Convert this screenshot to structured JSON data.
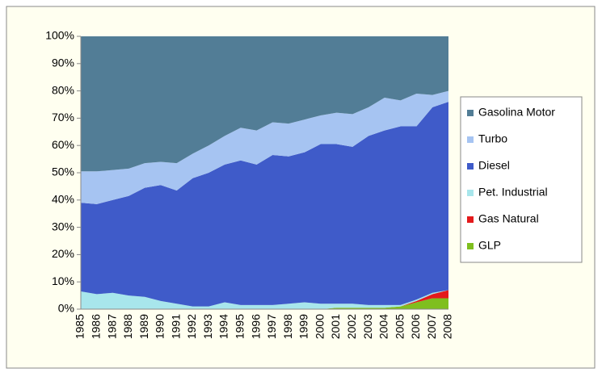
{
  "chart_data": {
    "type": "stacked_area",
    "categories": [
      "1985",
      "1986",
      "1987",
      "1988",
      "1989",
      "1990",
      "1991",
      "1992",
      "1993",
      "1994",
      "1995",
      "1996",
      "1997",
      "1998",
      "1999",
      "2000",
      "2001",
      "2002",
      "2003",
      "2004",
      "2005",
      "2006",
      "2007",
      "2008"
    ],
    "series": [
      {
        "name": "GLP",
        "color": "#7fbf1f",
        "values": [
          0,
          0,
          0,
          0,
          0,
          0,
          0,
          0,
          0,
          0,
          0,
          0,
          0,
          0,
          0,
          0,
          0.5,
          0.5,
          0.5,
          0.5,
          1,
          2.5,
          4,
          4
        ]
      },
      {
        "name": "Gas Natural",
        "color": "#e41a1c",
        "values": [
          0,
          0,
          0,
          0,
          0,
          0,
          0,
          0,
          0,
          0,
          0,
          0,
          0,
          0,
          0,
          0,
          0,
          0,
          0,
          0,
          0,
          0.5,
          1.5,
          3
        ]
      },
      {
        "name": "Pet. Industrial",
        "color": "#a8e6ec",
        "values": [
          6.5,
          5.5,
          6,
          5,
          4.5,
          3,
          2,
          1,
          1,
          2.5,
          1.5,
          1.5,
          1.5,
          2,
          2.5,
          2,
          1.5,
          1.5,
          1,
          1,
          0.5,
          0.5,
          0.5,
          0
        ]
      },
      {
        "name": "Diesel",
        "color": "#3f5bc9",
        "values": [
          32.5,
          33,
          34,
          36.5,
          40,
          42.5,
          41.5,
          47,
          49,
          50.5,
          53,
          51.5,
          55,
          54,
          55,
          58.5,
          58.5,
          57.5,
          62,
          64,
          65.5,
          63.5,
          68,
          69
        ]
      },
      {
        "name": "Turbo",
        "color": "#a6c4f2",
        "values": [
          11.5,
          12,
          11,
          10,
          9,
          8.5,
          10,
          9,
          10,
          10.5,
          12,
          12.5,
          12,
          12,
          12,
          10.5,
          11.5,
          12,
          10.5,
          12,
          9.5,
          12,
          4.5,
          4
        ]
      },
      {
        "name": "Gasolina Motor",
        "color": "#527d96",
        "values": [
          49.5,
          49.5,
          49,
          48.5,
          46.5,
          46,
          46.5,
          43,
          40,
          36.5,
          33.5,
          34.5,
          31.5,
          32,
          30.5,
          29,
          28,
          28.5,
          26,
          22.5,
          23.5,
          21,
          21.5,
          20
        ]
      }
    ],
    "ylim": [
      0,
      100
    ],
    "yticks": [
      {
        "value": 0,
        "label": "0%"
      },
      {
        "value": 10,
        "label": "10%"
      },
      {
        "value": 20,
        "label": "20%"
      },
      {
        "value": 30,
        "label": "30%"
      },
      {
        "value": 40,
        "label": "40%"
      },
      {
        "value": 50,
        "label": "50%"
      },
      {
        "value": 60,
        "label": "60%"
      },
      {
        "value": 70,
        "label": "70%"
      },
      {
        "value": 80,
        "label": "80%"
      },
      {
        "value": 90,
        "label": "90%"
      },
      {
        "value": 100,
        "label": "100%"
      }
    ],
    "legend": "right"
  }
}
